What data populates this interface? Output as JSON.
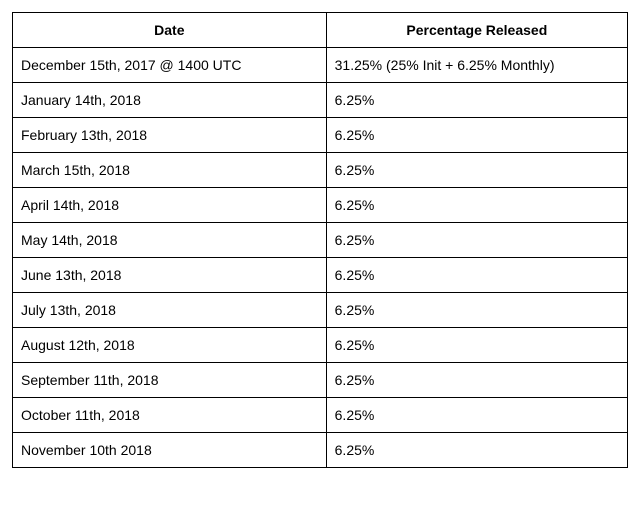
{
  "table": {
    "type": "table",
    "columns": [
      "Date",
      "Percentage Released"
    ],
    "rows": [
      [
        "December 15th, 2017 @ 1400 UTC",
        "31.25% (25% Init + 6.25% Monthly)"
      ],
      [
        "January 14th, 2018",
        "6.25%"
      ],
      [
        "February 13th, 2018",
        "6.25%"
      ],
      [
        "March 15th, 2018",
        "6.25%"
      ],
      [
        "April 14th, 2018",
        "6.25%"
      ],
      [
        "May 14th, 2018",
        "6.25%"
      ],
      [
        "June 13th, 2018",
        "6.25%"
      ],
      [
        "July 13th, 2018",
        "6.25%"
      ],
      [
        "August 12th, 2018",
        "6.25%"
      ],
      [
        "September 11th, 2018",
        "6.25%"
      ],
      [
        "October 11th, 2018",
        "6.25%"
      ],
      [
        "November 10th 2018",
        "6.25%"
      ]
    ],
    "border_color": "#000000",
    "background_color": "#ffffff",
    "text_color": "#000000",
    "header_fontweight": "bold",
    "header_align": "center",
    "cell_align": "left",
    "fontsize": 14,
    "col_widths_pct": [
      51,
      49
    ]
  }
}
